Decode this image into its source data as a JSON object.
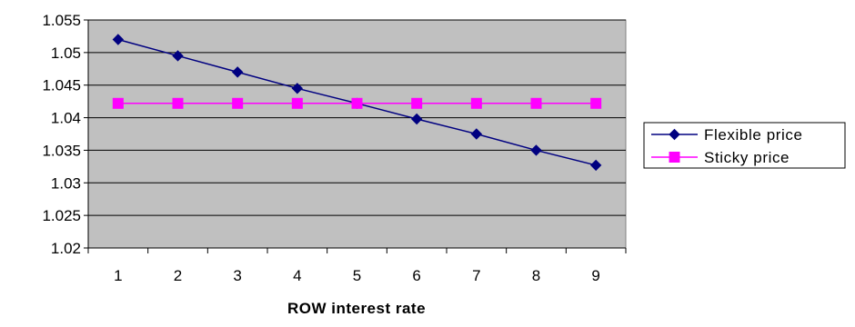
{
  "chart_data": {
    "type": "line",
    "title": "",
    "xlabel": "ROW interest rate",
    "ylabel": "",
    "x": [
      1,
      2,
      3,
      4,
      5,
      6,
      7,
      8,
      9
    ],
    "x_tick_labels": [
      "1",
      "2",
      "3",
      "4",
      "5",
      "6",
      "7",
      "8",
      "9"
    ],
    "y_tick_labels": [
      "1.02",
      "1.025",
      "1.03",
      "1.035",
      "1.04",
      "1.045",
      "1.05",
      "1.055"
    ],
    "y_ticks": [
      1.02,
      1.025,
      1.03,
      1.035,
      1.04,
      1.045,
      1.05,
      1.055
    ],
    "ylim": [
      1.02,
      1.055
    ],
    "grid": "horizontal",
    "legend_position": "right",
    "plot_background": "#c0c0c0",
    "series": [
      {
        "name": "Flexible price",
        "marker": "diamond",
        "color": "#000080",
        "values": [
          1.052,
          1.0495,
          1.047,
          1.0445,
          1.0422,
          1.0398,
          1.0375,
          1.035,
          1.0327
        ]
      },
      {
        "name": "Sticky price",
        "marker": "square",
        "color": "#ff00ff",
        "values": [
          1.0422,
          1.0422,
          1.0422,
          1.0422,
          1.0422,
          1.0422,
          1.0422,
          1.0422,
          1.0422
        ]
      }
    ]
  }
}
